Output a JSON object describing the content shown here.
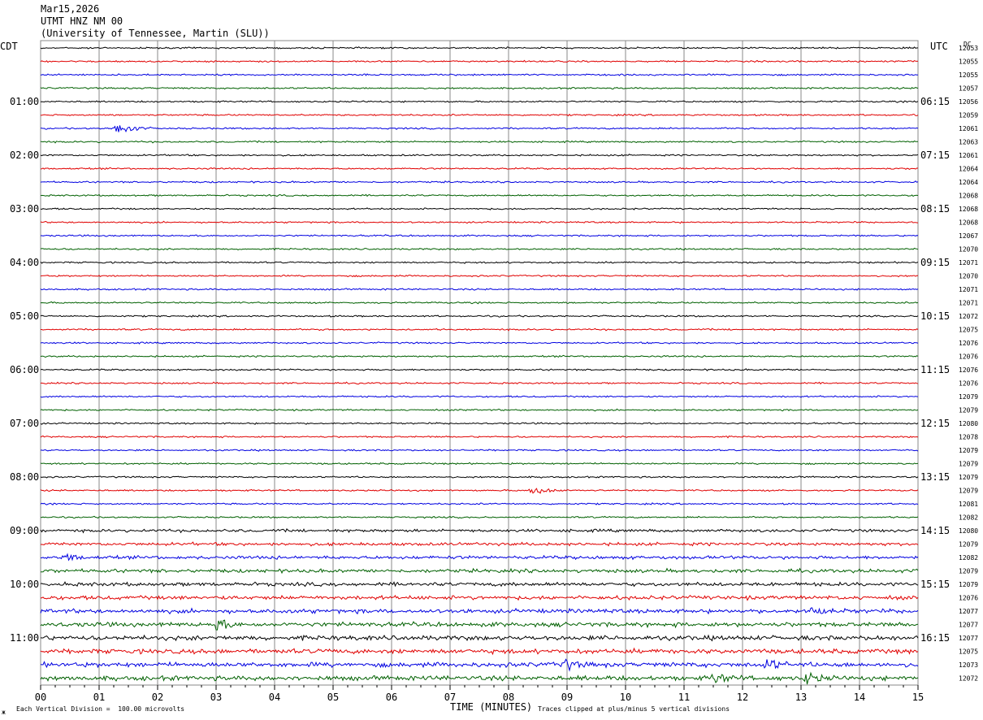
{
  "header": {
    "date": "Mar15,2026",
    "channel": "UTMT HNZ NM 00",
    "station": "(University of Tennessee, Martin (SLU))"
  },
  "left_timezone": "CDT",
  "right_timezone": "UTC",
  "dc_label": "DC",
  "footer": {
    "scale_note": "Each Vertical Division =  100.00 microvolts",
    "xaxis_title": "TIME (MINUTES)",
    "clip_note": "Traces clipped at plus/minus 5 vertical divisions",
    "corner_mark": "ж"
  },
  "colors": {
    "cycle": [
      "#000000",
      "#e00000",
      "#0000e0",
      "#006000"
    ],
    "grid": "#888888"
  },
  "chart_data": {
    "type": "line",
    "xlabel": "TIME (MINUTES)",
    "xlim": [
      0,
      15
    ],
    "x_ticks": [
      "00",
      "01",
      "02",
      "03",
      "04",
      "05",
      "06",
      "07",
      "08",
      "09",
      "10",
      "11",
      "12",
      "13",
      "14",
      "15"
    ],
    "left_time_labels": [
      "01:00",
      "02:00",
      "03:00",
      "04:00",
      "05:00",
      "06:00",
      "07:00",
      "08:00",
      "09:00",
      "10:00",
      "11:00"
    ],
    "right_time_labels": [
      "06:15",
      "07:15",
      "08:15",
      "09:15",
      "10:15",
      "11:15",
      "12:15",
      "13:15",
      "14:15",
      "15:15",
      "16:15"
    ],
    "dc_values": [
      "12053",
      "12055",
      "12055",
      "12057",
      "12056",
      "12059",
      "12061",
      "12063",
      "12061",
      "12064",
      "12064",
      "12068",
      "12068",
      "12068",
      "12067",
      "12070",
      "12071",
      "12070",
      "12071",
      "12071",
      "12072",
      "12075",
      "12076",
      "12076",
      "12076",
      "12076",
      "12079",
      "12079",
      "12080",
      "12078",
      "12079",
      "12079",
      "12079",
      "12079",
      "12081",
      "12082",
      "12080",
      "12079",
      "12082",
      "12079",
      "12079",
      "12076",
      "12077",
      "12077",
      "12077",
      "12075",
      "12073",
      "12072"
    ],
    "trace_count": 48,
    "events": [
      {
        "trace": 6,
        "minute": 1.3,
        "amplitude": 1.0
      },
      {
        "trace": 33,
        "minute": 8.4,
        "amplitude": 0.55
      },
      {
        "trace": 38,
        "minute": 0.4,
        "amplitude": 0.3
      },
      {
        "trace": 42,
        "minute": 13.2,
        "amplitude": 0.35
      },
      {
        "trace": 43,
        "minute": 3.0,
        "amplitude": 0.45
      },
      {
        "trace": 46,
        "minute": 8.9,
        "amplitude": 0.5
      },
      {
        "trace": 46,
        "minute": 12.4,
        "amplitude": 0.45
      },
      {
        "trace": 47,
        "minute": 11.5,
        "amplitude": 0.45
      },
      {
        "trace": 47,
        "minute": 13.1,
        "amplitude": 0.5
      }
    ]
  }
}
